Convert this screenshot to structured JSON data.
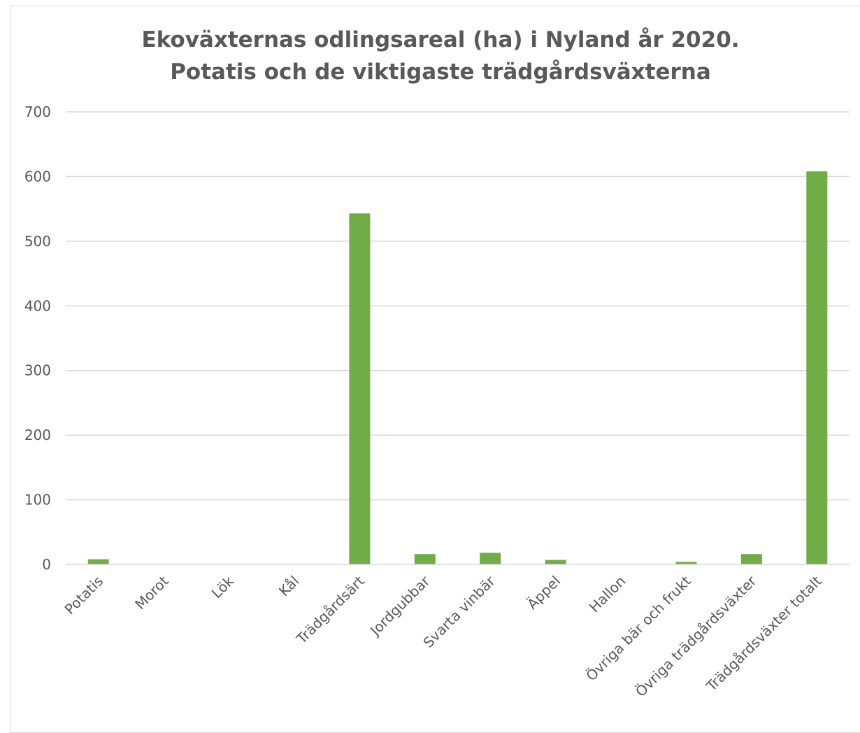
{
  "chart_data": {
    "type": "bar",
    "title": [
      "Ekoväxternas odlingsareal (ha) i Nyland år 2020.",
      "Potatis och de viktigaste trädgårdsväxterna"
    ],
    "xlabel": "",
    "ylabel": "",
    "ylim": [
      0,
      700
    ],
    "yticks": [
      "0",
      "100",
      "200",
      "300",
      "400",
      "500",
      "600",
      "700"
    ],
    "grid": true,
    "legend": "none",
    "color": "#70ad47",
    "categories": [
      "Potatis",
      "Morot",
      "Lök",
      "Kål",
      "Trädgårdsärt",
      "Jordgubbar",
      "Svarta vinbär",
      "Äppel",
      "Hallon",
      "Övriga bär och frukt",
      "Övriga trädgårdsväxter",
      "Trädgårdsväxter totalt"
    ],
    "values": [
      8,
      0,
      0,
      0,
      543,
      16,
      18,
      7,
      0,
      4,
      16,
      608
    ]
  }
}
